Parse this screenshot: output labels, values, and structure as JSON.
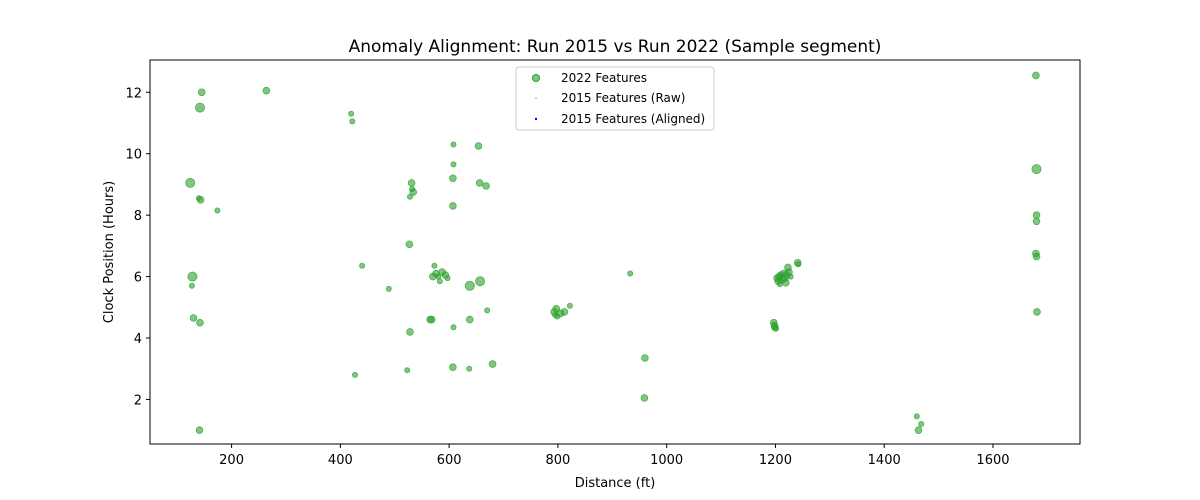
{
  "chart_data": {
    "type": "scatter",
    "title": "Anomaly Alignment: Run 2015 vs Run 2022 (Sample segment)",
    "xlabel": "Distance (ft)",
    "ylabel": "Clock Position (Hours)",
    "xlim": [
      50,
      1760
    ],
    "ylim": [
      0.55,
      13.05
    ],
    "xticks": [
      200,
      400,
      600,
      800,
      1000,
      1200,
      1400,
      1600
    ],
    "yticks": [
      2,
      4,
      6,
      8,
      10,
      12
    ],
    "grid": false,
    "legend_position": "top-center",
    "series": [
      {
        "name": "2022 Features",
        "color": "#2ca02c",
        "points": [
          [
            124,
            9.05,
            "l"
          ],
          [
            127,
            5.7,
            "s"
          ],
          [
            128,
            6.0,
            "l"
          ],
          [
            130,
            4.65,
            "m"
          ],
          [
            140,
            8.55,
            "s"
          ],
          [
            142,
            11.5,
            "l"
          ],
          [
            143,
            8.5,
            "m"
          ],
          [
            145,
            12.0,
            "m"
          ],
          [
            142,
            4.5,
            "m"
          ],
          [
            141,
            1.0,
            "m"
          ],
          [
            174,
            8.15,
            "s"
          ],
          [
            264,
            12.05,
            "m"
          ],
          [
            420,
            11.3,
            "s"
          ],
          [
            422,
            11.05,
            "s"
          ],
          [
            427,
            2.8,
            "s"
          ],
          [
            440,
            6.35,
            "s"
          ],
          [
            489,
            5.6,
            "s"
          ],
          [
            523,
            2.95,
            "s"
          ],
          [
            527,
            7.05,
            "m"
          ],
          [
            528,
            4.2,
            "m"
          ],
          [
            528,
            8.6,
            "s"
          ],
          [
            531,
            9.05,
            "m"
          ],
          [
            532,
            8.85,
            "s"
          ],
          [
            534,
            8.75,
            "m"
          ],
          [
            565,
            4.6,
            "m"
          ],
          [
            568,
            4.6,
            "m"
          ],
          [
            570,
            6.0,
            "m"
          ],
          [
            573,
            6.35,
            "s"
          ],
          [
            576,
            6.1,
            "m"
          ],
          [
            580,
            6.0,
            "s"
          ],
          [
            583,
            5.85,
            "s"
          ],
          [
            587,
            6.15,
            "m"
          ],
          [
            593,
            6.05,
            "m"
          ],
          [
            597,
            5.95,
            "s"
          ],
          [
            608,
            10.3,
            "s"
          ],
          [
            608,
            9.65,
            "s"
          ],
          [
            607,
            9.2,
            "m"
          ],
          [
            607,
            8.3,
            "m"
          ],
          [
            608,
            4.35,
            "s"
          ],
          [
            607,
            3.05,
            "m"
          ],
          [
            638,
            5.7,
            "l"
          ],
          [
            638,
            4.6,
            "m"
          ],
          [
            637,
            3.0,
            "s"
          ],
          [
            654,
            10.25,
            "m"
          ],
          [
            656,
            9.05,
            "m"
          ],
          [
            657,
            5.85,
            "l"
          ],
          [
            668,
            8.95,
            "m"
          ],
          [
            670,
            4.9,
            "s"
          ],
          [
            680,
            3.15,
            "m"
          ],
          [
            793,
            4.85,
            "m"
          ],
          [
            795,
            4.75,
            "s"
          ],
          [
            797,
            4.95,
            "m"
          ],
          [
            799,
            4.7,
            "s"
          ],
          [
            805,
            4.8,
            "m"
          ],
          [
            812,
            4.85,
            "m"
          ],
          [
            822,
            5.05,
            "s"
          ],
          [
            933,
            6.1,
            "s"
          ],
          [
            960,
            3.35,
            "m"
          ],
          [
            959,
            2.05,
            "m"
          ],
          [
            1197,
            4.5,
            "m"
          ],
          [
            1198,
            4.4,
            "m"
          ],
          [
            1199,
            4.35,
            "m"
          ],
          [
            1201,
            4.3,
            "s"
          ],
          [
            1203,
            5.95,
            "m"
          ],
          [
            1205,
            5.85,
            "m"
          ],
          [
            1207,
            6.0,
            "m"
          ],
          [
            1208,
            5.75,
            "s"
          ],
          [
            1210,
            6.05,
            "m"
          ],
          [
            1212,
            5.9,
            "m"
          ],
          [
            1215,
            6.1,
            "m"
          ],
          [
            1217,
            5.95,
            "m"
          ],
          [
            1219,
            5.8,
            "m"
          ],
          [
            1221,
            6.05,
            "m"
          ],
          [
            1223,
            6.3,
            "m"
          ],
          [
            1225,
            6.15,
            "m"
          ],
          [
            1228,
            6.0,
            "s"
          ],
          [
            1241,
            6.45,
            "m"
          ],
          [
            1242,
            6.4,
            "s"
          ],
          [
            1460,
            1.45,
            "s"
          ],
          [
            1463,
            1.0,
            "m"
          ],
          [
            1468,
            1.2,
            "s"
          ],
          [
            1679,
            12.55,
            "m"
          ],
          [
            1680,
            9.5,
            "l"
          ],
          [
            1680,
            8.0,
            "m"
          ],
          [
            1680,
            7.8,
            "m"
          ],
          [
            1679,
            6.75,
            "m"
          ],
          [
            1680,
            6.65,
            "m"
          ],
          [
            1681,
            4.85,
            "m"
          ]
        ]
      },
      {
        "name": "2015 Features (Raw)",
        "color": "#ff7f0e",
        "points": []
      },
      {
        "name": "2015 Features (Aligned)",
        "color": "#0000ff",
        "points": []
      }
    ]
  }
}
